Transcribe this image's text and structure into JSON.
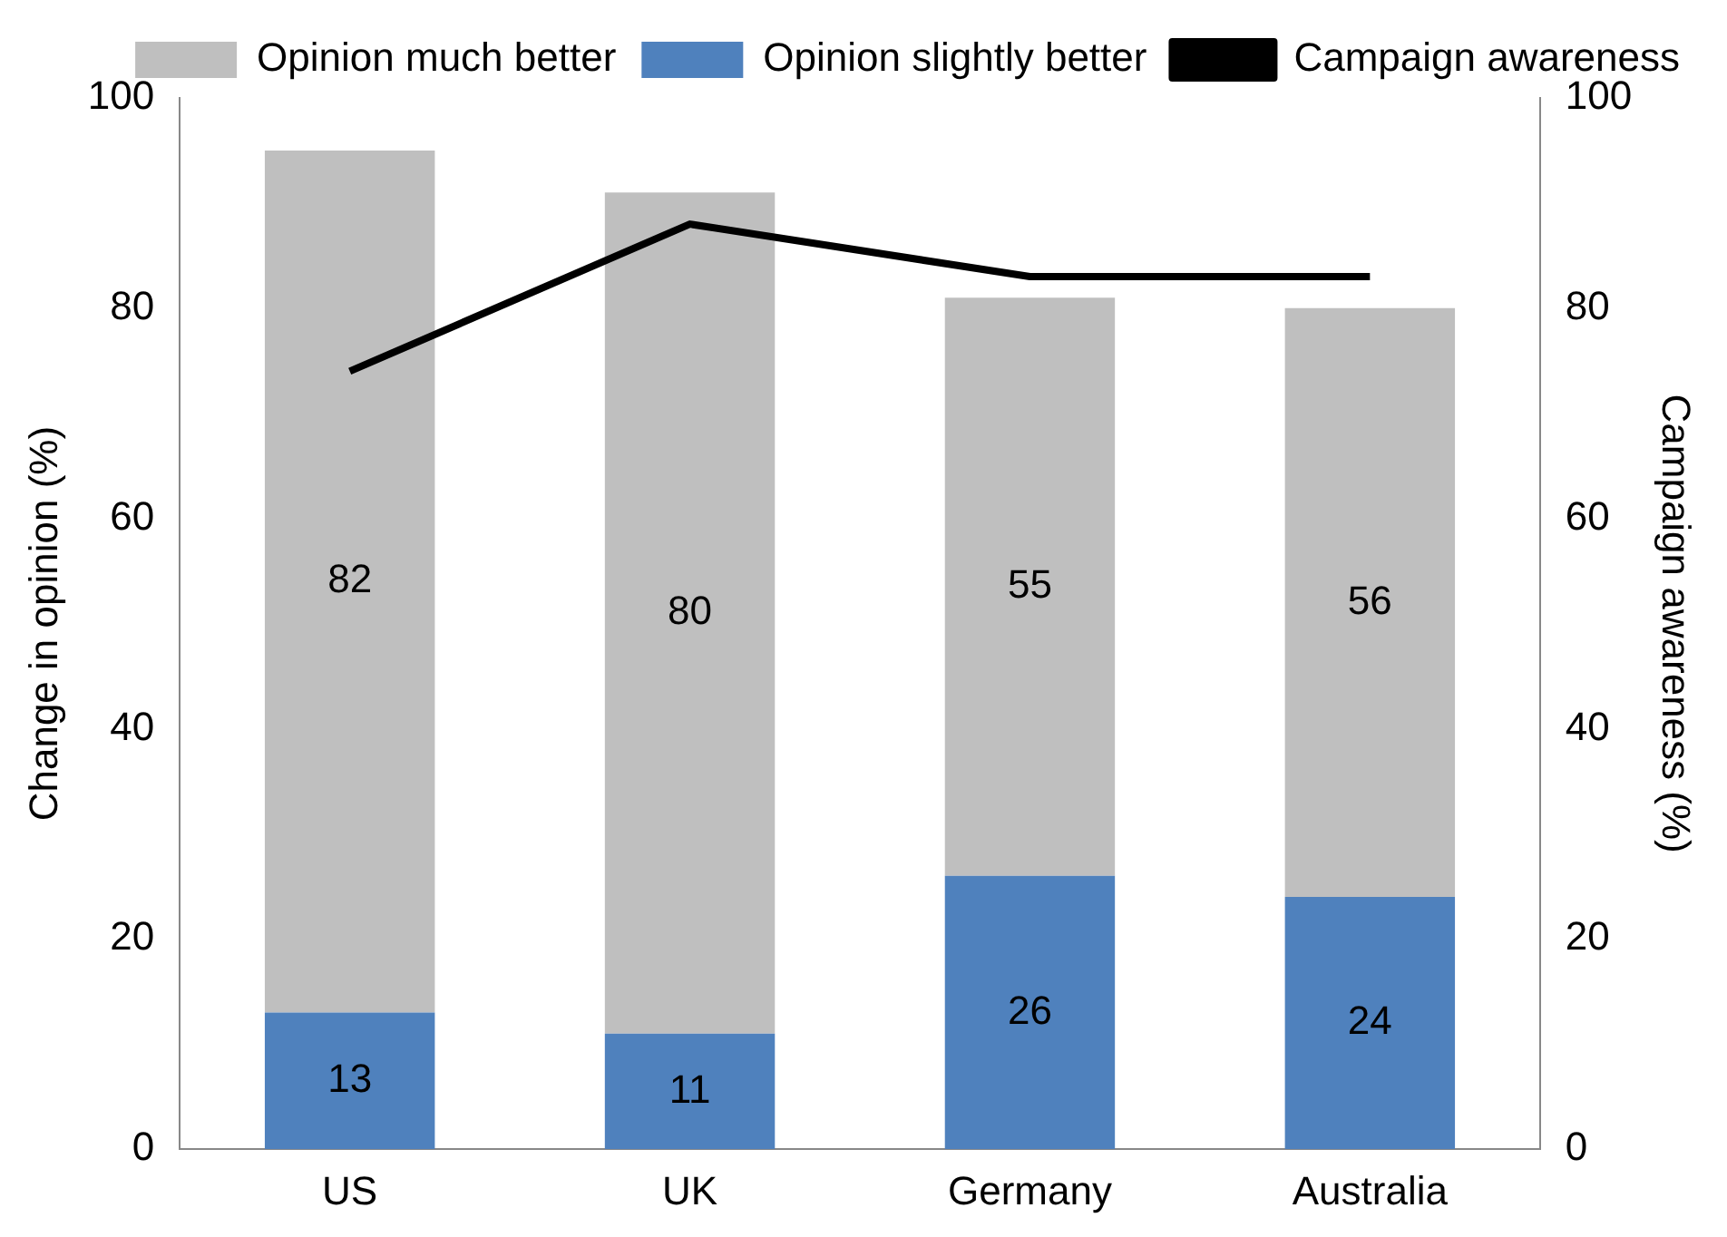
{
  "chart_data": {
    "type": "bar",
    "stacked": true,
    "categories": [
      "US",
      "UK",
      "Germany",
      "Australia"
    ],
    "ylabel": "Change in opinion (%)",
    "y2label": "Campaign awareness (%)",
    "ylim": [
      0,
      100
    ],
    "yticks": [
      0,
      20,
      40,
      60,
      80,
      100
    ],
    "y2lim": [
      0,
      100
    ],
    "y2ticks": [
      0,
      20,
      40,
      60,
      80,
      100
    ],
    "legend": "top",
    "grid": false,
    "series": [
      {
        "name": "Opinion slightly better",
        "color": "#4f81bd",
        "values": [
          13,
          11,
          26,
          24
        ],
        "value_labels": [
          "13",
          "11",
          "26",
          "24"
        ]
      },
      {
        "name": "Opinion much better",
        "color": "#bfbfbf",
        "values": [
          82,
          80,
          55,
          56
        ],
        "value_labels": [
          "82",
          "80",
          "55",
          "56"
        ]
      },
      {
        "name": "Campaign awareness",
        "type": "line",
        "axis": "y2",
        "color": "#000000",
        "values": [
          74,
          88,
          83,
          83
        ],
        "marker": "none"
      }
    ]
  }
}
